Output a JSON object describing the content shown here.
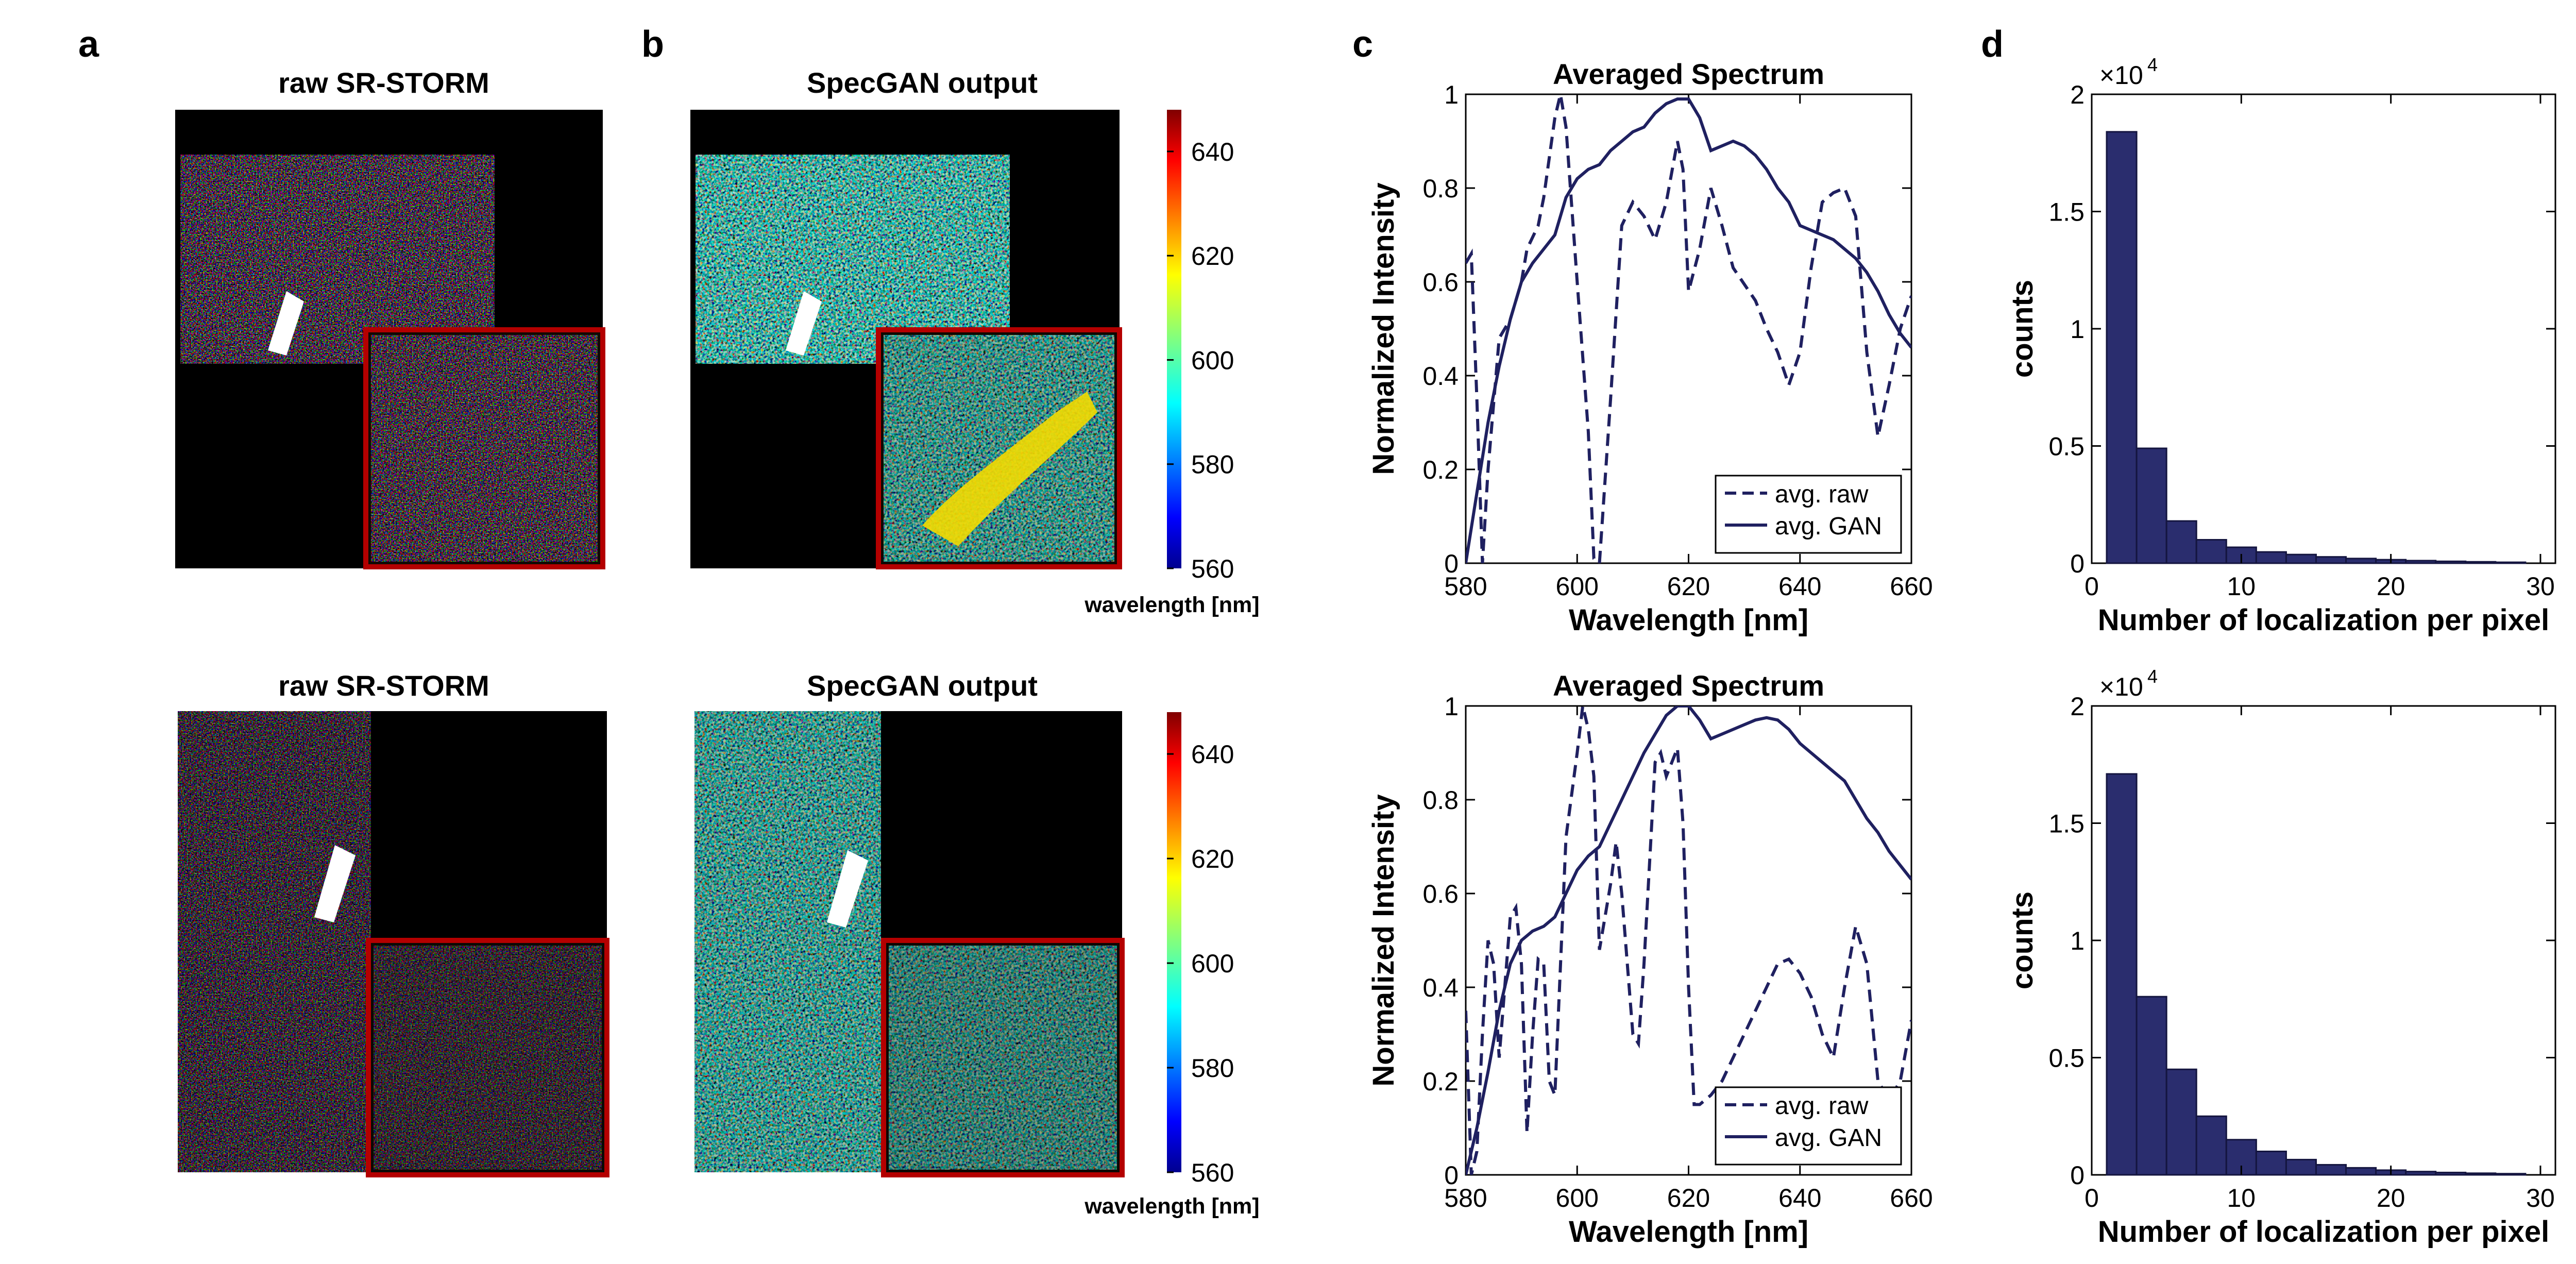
{
  "panel_letters": {
    "a": "a",
    "b": "b",
    "c": "c",
    "d": "d"
  },
  "panel_a": {
    "title_top": "raw SR-STORM",
    "title_bottom": "raw SR-STORM"
  },
  "panel_b": {
    "title_top": "SpecGAN output",
    "title_bottom": "SpecGAN output",
    "colorbar": {
      "ticks": [
        "560",
        "580",
        "600",
        "620",
        "640"
      ],
      "range": [
        560,
        648
      ],
      "label": "wavelength [nm]",
      "colormap": "jet"
    }
  },
  "colors": {
    "line": "#1f2060",
    "bar_fill": "#2a2d6e",
    "bar_edge": "#14153f",
    "inset_border": "#b40000",
    "arrow": "#ffffff",
    "image_bg": "#000000"
  },
  "chart_data": [
    {
      "id": "spectrum_top",
      "type": "line",
      "title": "Averaged Spectrum",
      "xlabel": "Wavelength [nm]",
      "ylabel": "Normalized  Intensity",
      "xlim": [
        580,
        660
      ],
      "ylim": [
        0,
        1
      ],
      "xticks": [
        "580",
        "600",
        "620",
        "640",
        "660"
      ],
      "yticks": [
        "0",
        "0.2",
        "0.4",
        "0.6",
        "0.8",
        "1"
      ],
      "legend_position": "bottom-right",
      "series": [
        {
          "name": "avg. raw",
          "style": "dashed",
          "x": [
            580,
            581,
            582,
            583,
            584,
            586,
            588,
            590,
            591,
            593,
            594,
            596,
            597,
            598,
            600,
            602,
            603,
            604,
            606,
            608,
            610,
            612,
            614,
            616,
            618,
            619,
            620,
            622,
            624,
            626,
            628,
            632,
            634,
            636,
            638,
            640,
            642,
            644,
            646,
            648,
            650,
            652,
            654,
            656,
            658,
            660
          ],
          "y": [
            0.64,
            0.66,
            0.35,
            0.0,
            0.2,
            0.48,
            0.52,
            0.6,
            0.67,
            0.72,
            0.78,
            0.95,
            1.0,
            0.93,
            0.6,
            0.28,
            0.01,
            0.0,
            0.35,
            0.72,
            0.77,
            0.74,
            0.69,
            0.77,
            0.9,
            0.84,
            0.58,
            0.67,
            0.8,
            0.72,
            0.63,
            0.56,
            0.5,
            0.45,
            0.38,
            0.45,
            0.63,
            0.77,
            0.79,
            0.8,
            0.74,
            0.45,
            0.27,
            0.38,
            0.5,
            0.57
          ]
        },
        {
          "name": "avg. GAN",
          "style": "solid",
          "x": [
            580,
            582,
            584,
            586,
            588,
            590,
            592,
            594,
            596,
            598,
            600,
            602,
            604,
            606,
            608,
            610,
            612,
            614,
            616,
            618,
            620,
            622,
            624,
            626,
            628,
            630,
            632,
            634,
            636,
            638,
            640,
            642,
            644,
            646,
            648,
            650,
            652,
            654,
            656,
            658,
            660
          ],
          "y": [
            0.0,
            0.15,
            0.3,
            0.42,
            0.52,
            0.6,
            0.64,
            0.67,
            0.7,
            0.78,
            0.82,
            0.84,
            0.85,
            0.88,
            0.9,
            0.92,
            0.93,
            0.96,
            0.98,
            0.99,
            0.99,
            0.95,
            0.88,
            0.89,
            0.9,
            0.89,
            0.87,
            0.84,
            0.8,
            0.77,
            0.72,
            0.71,
            0.7,
            0.69,
            0.67,
            0.65,
            0.62,
            0.58,
            0.53,
            0.49,
            0.46
          ]
        }
      ]
    },
    {
      "id": "spectrum_bottom",
      "type": "line",
      "title": "Averaged Spectrum",
      "xlabel": "Wavelength [nm]",
      "ylabel": "Normalized Intensity",
      "xlim": [
        580,
        660
      ],
      "ylim": [
        0,
        1
      ],
      "xticks": [
        "580",
        "600",
        "620",
        "640",
        "660"
      ],
      "yticks": [
        "0",
        "0.2",
        "0.4",
        "0.6",
        "0.8",
        "1"
      ],
      "legend_position": "bottom-right",
      "series": [
        {
          "name": "avg. raw",
          "style": "dashed",
          "x": [
            580,
            581,
            582,
            583,
            584,
            585,
            586,
            587,
            588,
            589,
            590,
            591,
            592,
            593,
            594,
            595,
            596,
            598,
            600,
            601,
            602,
            603,
            604,
            606,
            607,
            608,
            609,
            610,
            611,
            612,
            614,
            615,
            616,
            617,
            618,
            619,
            620,
            621,
            622,
            624,
            626,
            628,
            630,
            632,
            634,
            636,
            638,
            640,
            642,
            644,
            646,
            648,
            650,
            652,
            654,
            656,
            658,
            660
          ],
          "y": [
            0.35,
            0.0,
            0.05,
            0.3,
            0.5,
            0.45,
            0.25,
            0.4,
            0.55,
            0.57,
            0.45,
            0.09,
            0.3,
            0.46,
            0.45,
            0.2,
            0.17,
            0.72,
            0.9,
            1.0,
            0.95,
            0.85,
            0.48,
            0.62,
            0.71,
            0.6,
            0.45,
            0.3,
            0.28,
            0.45,
            0.88,
            0.9,
            0.85,
            0.88,
            0.91,
            0.75,
            0.4,
            0.15,
            0.15,
            0.17,
            0.2,
            0.25,
            0.3,
            0.35,
            0.4,
            0.45,
            0.46,
            0.43,
            0.38,
            0.3,
            0.25,
            0.4,
            0.53,
            0.45,
            0.2,
            0.16,
            0.2,
            0.33
          ]
        },
        {
          "name": "avg. GAN",
          "style": "solid",
          "x": [
            580,
            582,
            584,
            586,
            588,
            590,
            592,
            594,
            596,
            598,
            600,
            602,
            604,
            606,
            608,
            610,
            612,
            614,
            616,
            618,
            620,
            622,
            624,
            626,
            628,
            630,
            632,
            634,
            636,
            638,
            640,
            642,
            644,
            646,
            648,
            650,
            652,
            654,
            656,
            658,
            660
          ],
          "y": [
            0.0,
            0.1,
            0.22,
            0.35,
            0.45,
            0.5,
            0.52,
            0.53,
            0.55,
            0.6,
            0.65,
            0.68,
            0.7,
            0.75,
            0.8,
            0.85,
            0.9,
            0.94,
            0.98,
            1.0,
            1.0,
            0.97,
            0.93,
            0.94,
            0.95,
            0.96,
            0.97,
            0.975,
            0.97,
            0.95,
            0.92,
            0.9,
            0.88,
            0.86,
            0.84,
            0.8,
            0.76,
            0.73,
            0.69,
            0.66,
            0.63
          ]
        }
      ]
    },
    {
      "id": "hist_top",
      "type": "bar",
      "xlabel": "Number of localization per pixel",
      "ylabel": "counts",
      "exponent_label": "×10",
      "exponent_power": "4",
      "xlim": [
        0,
        31
      ],
      "ylim": [
        0,
        20000
      ],
      "xticks": [
        "0",
        "10",
        "20",
        "30"
      ],
      "yticks": [
        "0",
        "0.5",
        "1",
        "1.5",
        "2"
      ],
      "bin_edges": [
        1,
        3,
        5,
        7,
        9,
        11,
        13,
        15,
        17,
        19,
        21,
        23,
        25,
        27,
        29
      ],
      "values": [
        18400,
        4900,
        1800,
        1000,
        680,
        480,
        370,
        270,
        200,
        150,
        110,
        80,
        60,
        40
      ]
    },
    {
      "id": "hist_bottom",
      "type": "bar",
      "xlabel": "Number of localization per pixel",
      "ylabel": "counts",
      "exponent_label": "×10",
      "exponent_power": "4",
      "xlim": [
        0,
        31
      ],
      "ylim": [
        0,
        20000
      ],
      "xticks": [
        "0",
        "10",
        "20",
        "30"
      ],
      "yticks": [
        "0",
        "0.5",
        "1",
        "1.5",
        "2"
      ],
      "bin_edges": [
        1,
        3,
        5,
        7,
        9,
        11,
        13,
        15,
        17,
        19,
        21,
        23,
        25,
        27,
        29
      ],
      "values": [
        17100,
        7600,
        4500,
        2500,
        1500,
        1000,
        650,
        430,
        300,
        200,
        140,
        100,
        70,
        50
      ]
    }
  ]
}
